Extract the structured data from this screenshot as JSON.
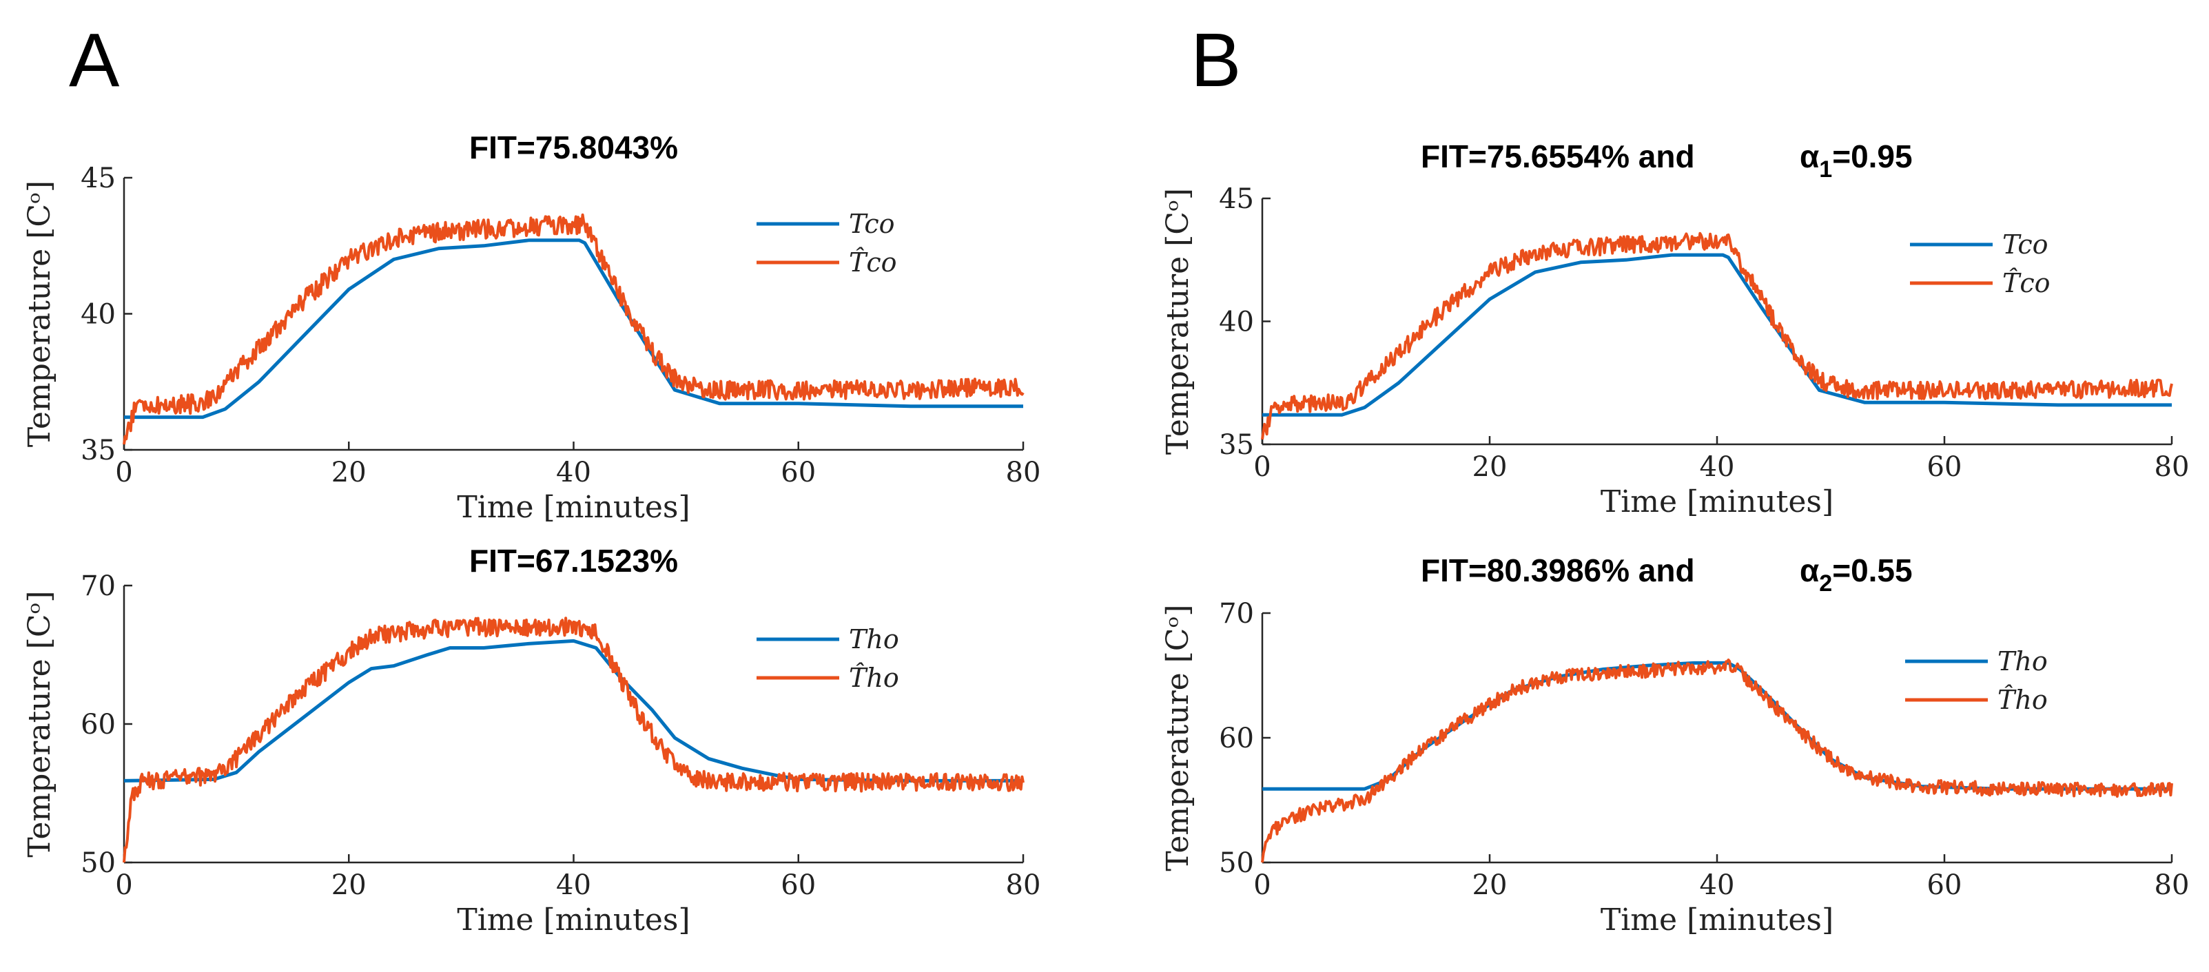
{
  "figure": {
    "panels": [
      {
        "label": "A"
      },
      {
        "label": "B"
      }
    ]
  },
  "chart_data": [
    {
      "type": "line",
      "panel": "A",
      "title": "FIT=75.8043%",
      "xlabel": "Time [minutes]",
      "ylabel": "Temperature [Cᵒ]",
      "xlim": [
        0,
        80
      ],
      "ylim": [
        35,
        45
      ],
      "xticks": [
        "0",
        "20",
        "40",
        "60",
        "80"
      ],
      "yticks": [
        "35",
        "40",
        "45"
      ],
      "legend_position": "top-right",
      "series": [
        {
          "name": "Tco",
          "color": "#0072BD",
          "kind": "smooth",
          "x": [
            0,
            7,
            9,
            12,
            16,
            20,
            24,
            28,
            32,
            36,
            40.5,
            41,
            44,
            47,
            49,
            53,
            60,
            70,
            80
          ],
          "y": [
            36.2,
            36.2,
            36.5,
            37.5,
            39.2,
            40.9,
            42.0,
            42.4,
            42.5,
            42.7,
            42.7,
            42.6,
            40.5,
            38.5,
            37.2,
            36.7,
            36.7,
            36.6,
            36.6
          ]
        },
        {
          "name": "T̂co",
          "color": "#EA4F1B",
          "kind": "noisy",
          "noise": 0.35,
          "start": 35.2,
          "x": [
            0,
            1,
            7,
            8,
            12,
            16,
            20,
            24,
            28,
            32,
            36,
            41,
            44,
            47,
            49,
            52,
            60,
            70,
            80
          ],
          "y": [
            35.2,
            36.6,
            36.7,
            37.0,
            38.7,
            40.5,
            42.0,
            42.8,
            43.0,
            43.1,
            43.2,
            43.3,
            40.8,
            38.6,
            37.6,
            37.2,
            37.2,
            37.2,
            37.3
          ]
        }
      ]
    },
    {
      "type": "line",
      "panel": "A",
      "title": "FIT=67.1523%",
      "xlabel": "Time [minutes]",
      "ylabel": "Temperature [Cᵒ]",
      "xlim": [
        0,
        80
      ],
      "ylim": [
        50,
        70
      ],
      "xticks": [
        "0",
        "20",
        "40",
        "60",
        "80"
      ],
      "yticks": [
        "50",
        "60",
        "70"
      ],
      "legend_position": "top-right",
      "series": [
        {
          "name": "Tho",
          "color": "#0072BD",
          "kind": "smooth",
          "x": [
            0,
            8,
            10,
            12,
            16,
            20,
            22,
            24,
            27,
            29,
            32,
            36,
            40,
            42,
            44,
            47,
            49,
            52,
            55,
            58,
            60,
            70,
            80
          ],
          "y": [
            55.9,
            56.0,
            56.5,
            58.0,
            60.5,
            63.0,
            64.0,
            64.2,
            65.0,
            65.5,
            65.5,
            65.8,
            66.0,
            65.5,
            63.5,
            61.0,
            59.0,
            57.5,
            56.8,
            56.3,
            56.0,
            55.9,
            55.9
          ]
        },
        {
          "name": "T̂ho",
          "color": "#EA4F1B",
          "kind": "noisy",
          "noise": 0.65,
          "start": 50.0,
          "x": [
            0,
            0.6,
            1.6,
            4,
            8,
            10,
            13,
            16,
            19,
            22,
            26,
            30,
            35,
            40,
            42,
            44,
            46,
            48,
            50,
            53,
            60,
            70,
            80
          ],
          "y": [
            50.0,
            54.5,
            55.8,
            56.0,
            56.3,
            57.5,
            60.0,
            62.5,
            64.5,
            66.3,
            66.8,
            67.0,
            67.0,
            67.0,
            66.8,
            63.5,
            60.5,
            58.0,
            56.3,
            55.8,
            55.8,
            55.8,
            55.8
          ]
        }
      ]
    },
    {
      "type": "line",
      "panel": "B",
      "title": "FIT=75.6554% and",
      "title_alpha": "α",
      "title_alpha_sub": "1",
      "title_alpha_value": "=0.95",
      "xlabel": "Time [minutes]",
      "ylabel": "Temperature [Cᵒ]",
      "xlim": [
        0,
        80
      ],
      "ylim": [
        35,
        45
      ],
      "xticks": [
        "0",
        "20",
        "40",
        "60",
        "80"
      ],
      "yticks": [
        "35",
        "40",
        "45"
      ],
      "legend_position": "top-right",
      "series": [
        {
          "name": "Tco",
          "color": "#0072BD",
          "kind": "smooth",
          "x": [
            0,
            7,
            9,
            12,
            16,
            20,
            24,
            28,
            32,
            36,
            40.5,
            41,
            44,
            47,
            49,
            53,
            60,
            70,
            80
          ],
          "y": [
            36.2,
            36.2,
            36.5,
            37.5,
            39.2,
            40.9,
            42.0,
            42.4,
            42.5,
            42.7,
            42.7,
            42.6,
            40.5,
            38.5,
            37.2,
            36.7,
            36.7,
            36.6,
            36.6
          ]
        },
        {
          "name": "T̂co",
          "color": "#EA4F1B",
          "kind": "noisy",
          "noise": 0.35,
          "start": 35.2,
          "x": [
            0,
            1,
            7,
            8,
            12,
            16,
            20,
            24,
            28,
            32,
            36,
            41,
            44,
            47,
            49,
            52,
            60,
            70,
            80
          ],
          "y": [
            35.2,
            36.6,
            36.7,
            37.0,
            38.7,
            40.5,
            42.0,
            42.8,
            43.0,
            43.1,
            43.2,
            43.3,
            40.8,
            38.6,
            37.6,
            37.2,
            37.2,
            37.2,
            37.3
          ]
        }
      ]
    },
    {
      "type": "line",
      "panel": "B",
      "title": "FIT=80.3986% and",
      "title_alpha": "α",
      "title_alpha_sub": "2",
      "title_alpha_value": "=0.55",
      "xlabel": "Time [minutes]",
      "ylabel": "Temperature [Cᵒ]",
      "xlim": [
        0,
        80
      ],
      "ylim": [
        50,
        70
      ],
      "xticks": [
        "0",
        "20",
        "40",
        "60",
        "80"
      ],
      "yticks": [
        "50",
        "60",
        "70"
      ],
      "legend_position": "top-right",
      "series": [
        {
          "name": "Tho",
          "color": "#0072BD",
          "kind": "smooth",
          "x": [
            0,
            9,
            11,
            14,
            18,
            22,
            26,
            30,
            34,
            38,
            41,
            42,
            44,
            47,
            50,
            53,
            58,
            65,
            80
          ],
          "y": [
            55.9,
            55.9,
            56.6,
            59.0,
            61.5,
            63.8,
            64.9,
            65.5,
            65.8,
            66.0,
            66.0,
            65.5,
            63.8,
            61.0,
            58.3,
            56.8,
            56.1,
            55.9,
            55.9
          ]
        },
        {
          "name": "T̂ho",
          "color": "#EA4F1B",
          "kind": "noisy",
          "noise": 0.55,
          "start": 50.0,
          "x": [
            0,
            0.5,
            2,
            5,
            9,
            11,
            14,
            18,
            22,
            26,
            30,
            34,
            38,
            41,
            42,
            44,
            47,
            50,
            53,
            58,
            65,
            80
          ],
          "y": [
            50.0,
            52.0,
            53.5,
            54.3,
            55.0,
            56.6,
            59.0,
            61.5,
            63.8,
            64.9,
            65.2,
            65.4,
            65.6,
            65.7,
            65.3,
            63.5,
            60.8,
            58.3,
            56.8,
            56.1,
            55.9,
            55.8
          ]
        }
      ]
    }
  ]
}
